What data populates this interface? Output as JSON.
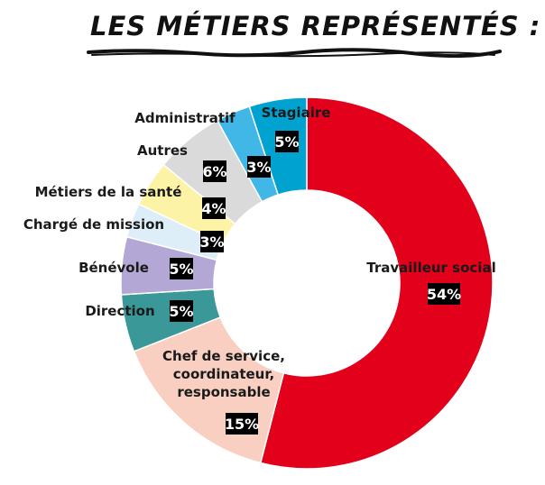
{
  "title": "LES MÉTIERS REPRÉSENTÉS :",
  "chart_data": {
    "type": "pie",
    "variant": "donut",
    "title": "LES MÉTIERS REPRÉSENTÉS :",
    "slices": [
      {
        "label": [
          "Travailleur social"
        ],
        "value": 54,
        "value_label": "54%",
        "color": "#e2001a"
      },
      {
        "label": [
          "Chef de service,",
          "coordinateur,",
          "responsable"
        ],
        "value": 15,
        "value_label": "15%",
        "color": "#f8cfc0"
      },
      {
        "label": [
          "Direction"
        ],
        "value": 5,
        "value_label": "5%",
        "color": "#3a9898"
      },
      {
        "label": [
          "Bénévole"
        ],
        "value": 5,
        "value_label": "5%",
        "color": "#b3a7d6"
      },
      {
        "label": [
          "Chargé de mission"
        ],
        "value": 3,
        "value_label": "3%",
        "color": "#ddeef8"
      },
      {
        "label": [
          "Métiers de la santé"
        ],
        "value": 4,
        "value_label": "4%",
        "color": "#fcf3a6"
      },
      {
        "label": [
          "Autres"
        ],
        "value": 6,
        "value_label": "6%",
        "color": "#dadada"
      },
      {
        "label": [
          "Administratif"
        ],
        "value": 3,
        "value_label": "3%",
        "color": "#41b7e8"
      },
      {
        "label": [
          "Stagiaire"
        ],
        "value": 5,
        "value_label": "5%",
        "color": "#00a3d0"
      }
    ]
  }
}
